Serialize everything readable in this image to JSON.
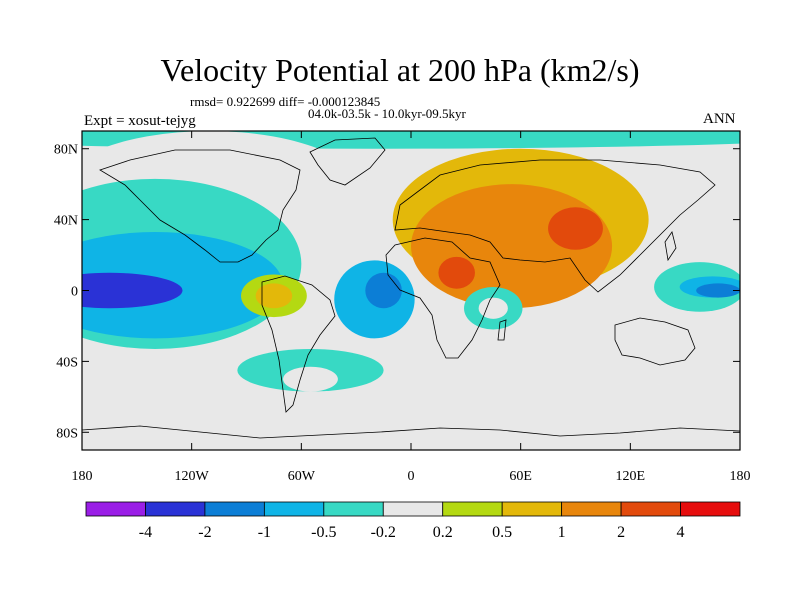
{
  "header": {
    "title": "Velocity Potential at 200 hPa (km2/s)",
    "stats": "rmsd= 0.922699 diff= -0.000123845",
    "period": "04.0k-03.5k - 10.0kyr-09.5kyr",
    "experiment": "Expt = xosut-tejyg",
    "season": "ANN"
  },
  "chart_data": {
    "type": "heatmap",
    "title": "Velocity Potential at 200 hPa (km2/s)",
    "variable": "velocity potential difference",
    "units": "km2/s",
    "x_range": [
      -180,
      180
    ],
    "y_range": [
      -90,
      90
    ],
    "x_ticks": [
      {
        "value": -180,
        "label": "180"
      },
      {
        "value": -120,
        "label": "120W"
      },
      {
        "value": -60,
        "label": "60W"
      },
      {
        "value": 0,
        "label": "0"
      },
      {
        "value": 60,
        "label": "60E"
      },
      {
        "value": 120,
        "label": "120E"
      },
      {
        "value": 180,
        "label": "180"
      }
    ],
    "y_ticks": [
      {
        "value": 80,
        "label": "80N"
      },
      {
        "value": 40,
        "label": "40N"
      },
      {
        "value": 0,
        "label": "0"
      },
      {
        "value": -40,
        "label": "40S"
      },
      {
        "value": -80,
        "label": "80S"
      }
    ],
    "colorbar": {
      "levels": [
        "-4",
        "-2",
        "-1",
        "-0.5",
        "-0.2",
        "0.2",
        "0.5",
        "1",
        "2",
        "4"
      ],
      "colors": [
        "#9a1ee6",
        "#2a32d6",
        "#0c7ed6",
        "#0fb4e6",
        "#38d9c4",
        "#e8e8e8",
        "#b4d912",
        "#e3b80a",
        "#e8860c",
        "#e24a0c",
        "#e60d0d"
      ]
    },
    "regions": [
      {
        "level": 4,
        "center": [
          -20,
          88
        ],
        "radius": [
          260,
          8
        ],
        "note": "north polar band"
      },
      {
        "level": 5,
        "center": [
          -110,
          50
        ],
        "radius": [
          90,
          40
        ]
      },
      {
        "level": 4,
        "center": [
          -140,
          15
        ],
        "radius": [
          80,
          48
        ]
      },
      {
        "level": 3,
        "center": [
          -140,
          3
        ],
        "radius": [
          70,
          30
        ]
      },
      {
        "level": 1,
        "center": [
          -165,
          0
        ],
        "radius": [
          40,
          10
        ]
      },
      {
        "level": 3,
        "center": [
          -20,
          -5
        ],
        "radius": [
          22,
          22
        ]
      },
      {
        "level": 2,
        "center": [
          -15,
          0
        ],
        "radius": [
          10,
          10
        ]
      },
      {
        "level": 6,
        "center": [
          -75,
          -3
        ],
        "radius": [
          18,
          12
        ]
      },
      {
        "level": 7,
        "center": [
          -75,
          -3
        ],
        "radius": [
          10,
          7
        ]
      },
      {
        "level": 4,
        "center": [
          -55,
          -45
        ],
        "radius": [
          40,
          12
        ]
      },
      {
        "level": 5,
        "center": [
          -55,
          -50
        ],
        "radius": [
          15,
          7
        ]
      },
      {
        "level": 7,
        "center": [
          60,
          40
        ],
        "radius": [
          70,
          40
        ]
      },
      {
        "level": 8,
        "center": [
          55,
          25
        ],
        "radius": [
          55,
          35
        ]
      },
      {
        "level": 9,
        "center": [
          90,
          35
        ],
        "radius": [
          15,
          12
        ]
      },
      {
        "level": 9,
        "center": [
          25,
          10
        ],
        "radius": [
          10,
          9
        ]
      },
      {
        "level": 4,
        "center": [
          45,
          -10
        ],
        "radius": [
          16,
          12
        ]
      },
      {
        "level": 5,
        "center": [
          45,
          -10
        ],
        "radius": [
          8,
          6
        ]
      },
      {
        "level": 4,
        "center": [
          158,
          2
        ],
        "radius": [
          25,
          14
        ]
      },
      {
        "level": 3,
        "center": [
          165,
          2
        ],
        "radius": [
          18,
          6
        ]
      },
      {
        "level": 2,
        "center": [
          168,
          0
        ],
        "radius": [
          12,
          4
        ]
      }
    ],
    "annotations": [
      "rmsd= 0.922699 diff= -0.000123845",
      "04.0k-03.5k - 10.0kyr-09.5kyr",
      "Expt = xosut-tejyg",
      "ANN"
    ]
  }
}
